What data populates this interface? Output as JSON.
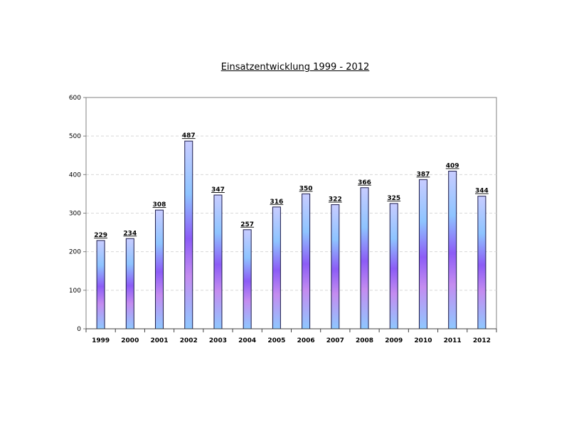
{
  "chart_data": {
    "type": "bar",
    "title": "Einsatzentwicklung 1999 - 2012",
    "xlabel": "",
    "ylabel": "",
    "categories": [
      "1999",
      "2000",
      "2001",
      "2002",
      "2003",
      "2004",
      "2005",
      "2006",
      "2007",
      "2008",
      "2009",
      "2010",
      "2011",
      "2012"
    ],
    "values": [
      229,
      234,
      308,
      487,
      347,
      257,
      316,
      350,
      322,
      366,
      325,
      387,
      409,
      344
    ],
    "ylim": [
      0,
      600
    ],
    "yticks": [
      0,
      100,
      200,
      300,
      400,
      500,
      600
    ],
    "grid": true,
    "legend": "none",
    "data_labels": true,
    "colors": {
      "bar_top": "#c8ccff",
      "bar_mid_blue": "#8ec4ff",
      "bar_mid_violet": "#8c5cf6",
      "bar_low_violet": "#c48cf0",
      "bar_bottom": "#8ec8ff",
      "bar_edge": "#1a1a4a",
      "grid": "#d8d8d8",
      "axis": "#808080"
    }
  }
}
